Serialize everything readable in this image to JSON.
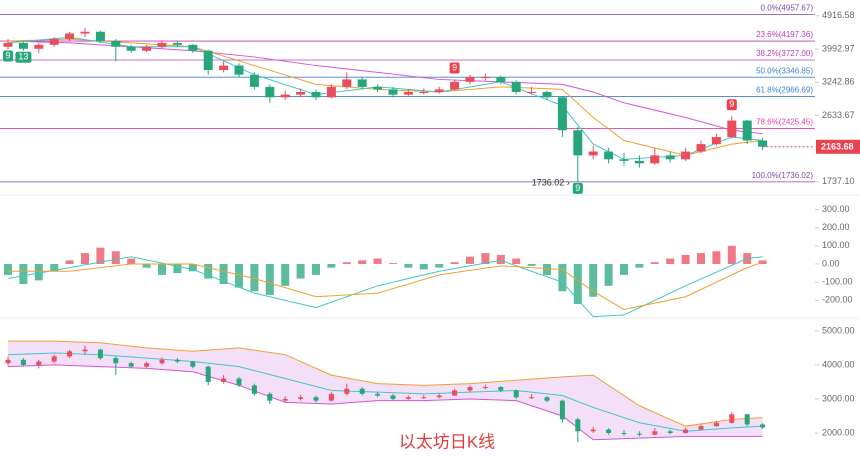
{
  "chart_data": [
    {
      "type": "candlestick",
      "log_scale": true,
      "up_color": "#ea4d5c",
      "down_color": "#26a67a",
      "ylim": [
        1650,
        5430
      ],
      "yticks": [
        4916.58,
        3992.97,
        3242.86,
        2633.67,
        {
          "value": 1737.1,
          "label": "1737.10"
        }
      ],
      "candles": [
        [
          4050,
          4250,
          3980,
          4150
        ],
        [
          4150,
          4200,
          3950,
          4000
        ],
        [
          4000,
          4150,
          3900,
          4100
        ],
        [
          4100,
          4300,
          4050,
          4250
        ],
        [
          4250,
          4450,
          4200,
          4400
        ],
        [
          4400,
          4560,
          4300,
          4450
        ],
        [
          4450,
          4480,
          4150,
          4200
        ],
        [
          4200,
          4250,
          3700,
          4050
        ],
        [
          4050,
          4100,
          3900,
          3950
        ],
        [
          3950,
          4100,
          3920,
          4050
        ],
        [
          4050,
          4220,
          4000,
          4150
        ],
        [
          4150,
          4200,
          4050,
          4100
        ],
        [
          4100,
          4120,
          3900,
          3950
        ],
        [
          3950,
          3980,
          3400,
          3500
        ],
        [
          3500,
          3700,
          3450,
          3600
        ],
        [
          3600,
          3650,
          3350,
          3400
        ],
        [
          3400,
          3450,
          3100,
          3150
        ],
        [
          3150,
          3200,
          2850,
          2950
        ],
        [
          2950,
          3080,
          2900,
          3000
        ],
        [
          3000,
          3120,
          2950,
          3050
        ],
        [
          3050,
          3100,
          2900,
          2950
        ],
        [
          2950,
          3200,
          2930,
          3150
        ],
        [
          3150,
          3450,
          3100,
          3300
        ],
        [
          3300,
          3350,
          3100,
          3150
        ],
        [
          3150,
          3200,
          3050,
          3100
        ],
        [
          3100,
          3150,
          2950,
          3000
        ],
        [
          3000,
          3100,
          2980,
          3050
        ],
        [
          3050,
          3120,
          3000,
          3050
        ],
        [
          3050,
          3150,
          3020,
          3100
        ],
        [
          3100,
          3300,
          3080,
          3250
        ],
        [
          3250,
          3400,
          3200,
          3350
        ],
        [
          3350,
          3420,
          3280,
          3350
        ],
        [
          3350,
          3380,
          3200,
          3250
        ],
        [
          3250,
          3280,
          3000,
          3050
        ],
        [
          3050,
          3150,
          3000,
          3050
        ],
        [
          3050,
          3080,
          2900,
          2950
        ],
        [
          2950,
          2980,
          2300,
          2400
        ],
        [
          2400,
          2450,
          1736.02,
          2050
        ],
        [
          2050,
          2180,
          2000,
          2100
        ],
        [
          2100,
          2150,
          1950,
          2000
        ],
        [
          2000,
          2080,
          1920,
          1980
        ],
        [
          1980,
          2050,
          1900,
          1950
        ],
        [
          1950,
          2150,
          1930,
          2050
        ],
        [
          2050,
          2100,
          1960,
          2000
        ],
        [
          2000,
          2150,
          1980,
          2100
        ],
        [
          2100,
          2250,
          2080,
          2200
        ],
        [
          2200,
          2350,
          2180,
          2300
        ],
        [
          2300,
          2620,
          2280,
          2550
        ],
        [
          2550,
          2560,
          2200,
          2250
        ],
        [
          2250,
          2290,
          2120,
          2163.68
        ]
      ],
      "fib_levels": [
        {
          "value": 4957.67,
          "label": "0.0%(4957.67)",
          "color": "#7d4aa8"
        },
        {
          "value": 4197.36,
          "label": "23.6%(4197.36)",
          "color": "#c23bb5"
        },
        {
          "value": 3727.0,
          "label": "38.2%(3727.00)",
          "color": "#c23bb5"
        },
        {
          "value": 3346.85,
          "label": "50.0%(3346.85)",
          "color": "#3f7fd0"
        },
        {
          "value": 2966.69,
          "label": "61.8%(2966.69)",
          "color": "#3f7fd0"
        },
        {
          "value": 2425.45,
          "label": "78.6%(2425.45)",
          "color": "#e040a8"
        },
        {
          "value": 1736.02,
          "label": "100.0%(1736.02)",
          "color": "#7d4aa8"
        }
      ],
      "lines": [
        {
          "color": "#d257d6",
          "x": [
            0,
            4,
            8,
            12,
            16,
            20,
            24,
            28,
            32,
            36,
            38,
            40,
            44,
            47,
            49
          ],
          "values": [
            4200,
            4150,
            4050,
            3950,
            3800,
            3600,
            3450,
            3300,
            3250,
            3200,
            3050,
            2850,
            2600,
            2400,
            2350
          ]
        },
        {
          "color": "#f0a030",
          "x": [
            0,
            4,
            8,
            12,
            16,
            20,
            24,
            28,
            32,
            36,
            38,
            40,
            44,
            47,
            49
          ],
          "values": [
            4200,
            4250,
            4150,
            4050,
            3600,
            3200,
            3100,
            3050,
            3150,
            3100,
            2600,
            2250,
            2050,
            2200,
            2250
          ]
        },
        {
          "color": "#3fc7c7",
          "x": [
            0,
            4,
            8,
            12,
            16,
            20,
            24,
            28,
            32,
            36,
            38,
            40,
            44,
            47,
            49
          ],
          "values": [
            4150,
            4300,
            4050,
            4050,
            3400,
            3000,
            3150,
            3050,
            3250,
            2800,
            2200,
            2000,
            2050,
            2300,
            2250
          ]
        }
      ],
      "last_price": 2163.68,
      "last_price_color": "#e8434f",
      "low_label": "1736.02 ›",
      "low_index": 37,
      "signals": [
        {
          "label": 9,
          "at": 0,
          "color": "#26a67a",
          "side": "below"
        },
        {
          "label": 13,
          "at": 1,
          "color": "#26a67a",
          "side": "below"
        },
        {
          "label": 9,
          "at": 29,
          "color": "#e8434f",
          "side": "above"
        },
        {
          "label": 9,
          "at": 37,
          "color": "#26a67a",
          "side": "below"
        },
        {
          "label": 9,
          "at": 47,
          "color": "#e8434f",
          "side": "above"
        }
      ]
    },
    {
      "type": "macd",
      "up_color": "#ea4d5c",
      "down_color": "#26a67a",
      "ylim": [
        -297,
        352
      ],
      "yticks": [
        {
          "value": 300,
          "label": "300.00"
        },
        {
          "value": 200,
          "label": "200.00"
        },
        {
          "value": 100,
          "label": "100.00"
        },
        {
          "value": 0,
          "label": "0.00"
        },
        {
          "value": -100,
          "label": "-100.00"
        },
        {
          "value": -200,
          "label": "-200.00"
        }
      ],
      "histogram": [
        -60,
        -110,
        -90,
        -40,
        20,
        60,
        90,
        70,
        30,
        -20,
        -60,
        -50,
        -40,
        -80,
        -110,
        -130,
        -150,
        -170,
        -120,
        -80,
        -60,
        -20,
        10,
        20,
        30,
        5,
        -20,
        -30,
        -20,
        10,
        40,
        60,
        50,
        30,
        -10,
        -60,
        -150,
        -220,
        -180,
        -120,
        -60,
        -20,
        10,
        30,
        50,
        60,
        70,
        100,
        60,
        20
      ],
      "lines": [
        {
          "color": "#3fc7c7",
          "x": [
            0,
            4,
            8,
            12,
            16,
            20,
            24,
            28,
            32,
            36,
            38,
            40,
            44,
            48,
            49
          ],
          "values": [
            -80,
            -20,
            40,
            -30,
            -160,
            -240,
            -120,
            -40,
            20,
            -100,
            -290,
            -280,
            -120,
            30,
            40
          ]
        },
        {
          "color": "#f0a030",
          "x": [
            0,
            4,
            8,
            12,
            16,
            20,
            24,
            28,
            32,
            36,
            38,
            40,
            44,
            48,
            49
          ],
          "values": [
            -40,
            -40,
            0,
            0,
            -80,
            -180,
            -160,
            -60,
            -10,
            -30,
            -150,
            -250,
            -180,
            -20,
            10
          ]
        }
      ]
    },
    {
      "type": "bollinger",
      "ylim": [
        1500,
        5320
      ],
      "fill": "#f0d8f6",
      "yticks": [
        {
          "value": 5000,
          "label": "5000.00"
        },
        {
          "value": 4000,
          "label": "4000.00"
        },
        {
          "value": 3000,
          "label": "3000.00"
        },
        {
          "value": 2000,
          "label": "2000.00"
        }
      ],
      "x": [
        0,
        3,
        6,
        9,
        12,
        15,
        18,
        21,
        24,
        27,
        30,
        33,
        36,
        38,
        41,
        44,
        47,
        49
      ],
      "bands": [
        {
          "color": "#f0a030",
          "values": [
            4700,
            4700,
            4650,
            4500,
            4400,
            4500,
            4300,
            3700,
            3450,
            3400,
            3450,
            3550,
            3650,
            3700,
            2800,
            2200,
            2400,
            2450
          ]
        },
        {
          "color": "#3fc7c7",
          "values": [
            4300,
            4350,
            4300,
            4200,
            4100,
            3950,
            3600,
            3250,
            3200,
            3150,
            3200,
            3250,
            3100,
            2750,
            2300,
            2050,
            2150,
            2200
          ]
        },
        {
          "color": "#d257d6",
          "values": [
            3950,
            4000,
            3950,
            3900,
            3800,
            3400,
            2900,
            2850,
            2950,
            2950,
            3000,
            2950,
            2500,
            1800,
            1850,
            1900,
            1900,
            1900
          ]
        }
      ]
    }
  ],
  "watermark": "以太坊日K线"
}
